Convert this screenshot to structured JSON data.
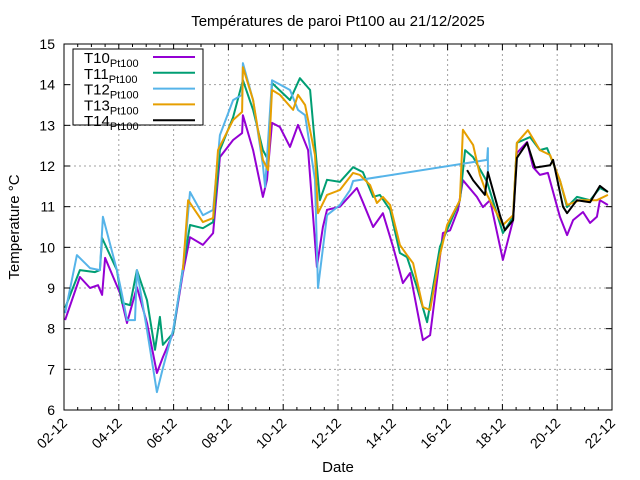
{
  "chart_data": {
    "type": "line",
    "title": "Températures de paroi Pt100 au 21/12/2025",
    "xlabel": "Date",
    "ylabel": "Temperature °C",
    "x_unit": "days since 02-12",
    "xlim": [
      0,
      20
    ],
    "ylim": [
      6,
      15
    ],
    "grid": true,
    "legend_position": "top-left",
    "xticks": [
      {
        "value": 0,
        "label": "02-12"
      },
      {
        "value": 2,
        "label": "04-12"
      },
      {
        "value": 4,
        "label": "06-12"
      },
      {
        "value": 6,
        "label": "08-12"
      },
      {
        "value": 8,
        "label": "10-12"
      },
      {
        "value": 10,
        "label": "12-12"
      },
      {
        "value": 12,
        "label": "14-12"
      },
      {
        "value": 14,
        "label": "16-12"
      },
      {
        "value": 16,
        "label": "18-12"
      },
      {
        "value": 18,
        "label": "20-12"
      },
      {
        "value": 20,
        "label": "22-12"
      }
    ],
    "yticks": [
      {
        "value": 6,
        "label": "6"
      },
      {
        "value": 7,
        "label": "7"
      },
      {
        "value": 8,
        "label": "8"
      },
      {
        "value": 9,
        "label": "9"
      },
      {
        "value": 10,
        "label": "10"
      },
      {
        "value": 11,
        "label": "11"
      },
      {
        "value": 12,
        "label": "12"
      },
      {
        "value": 13,
        "label": "13"
      },
      {
        "value": 14,
        "label": "14"
      },
      {
        "value": 15,
        "label": "15"
      }
    ],
    "series": [
      {
        "name": "T10",
        "sub": "Pt100",
        "color": "#9400d3",
        "points": [
          [
            0.04,
            8.21
          ],
          [
            0.58,
            9.27
          ],
          [
            0.95,
            9.0
          ],
          [
            1.24,
            9.07
          ],
          [
            1.39,
            8.83
          ],
          [
            1.5,
            9.74
          ],
          [
            2.04,
            8.88
          ],
          [
            2.3,
            8.14
          ],
          [
            2.66,
            9.02
          ],
          [
            3.03,
            8.14
          ],
          [
            3.39,
            6.91
          ],
          [
            3.61,
            7.3
          ],
          [
            3.98,
            7.89
          ],
          [
            4.34,
            9.37
          ],
          [
            4.6,
            10.25
          ],
          [
            5.07,
            10.06
          ],
          [
            5.44,
            10.35
          ],
          [
            5.69,
            12.22
          ],
          [
            6.17,
            12.64
          ],
          [
            6.5,
            12.81
          ],
          [
            6.53,
            13.25
          ],
          [
            6.9,
            12.39
          ],
          [
            7.26,
            11.24
          ],
          [
            7.41,
            11.66
          ],
          [
            7.59,
            13.06
          ],
          [
            7.88,
            12.96
          ],
          [
            8.25,
            12.47
          ],
          [
            8.54,
            13.01
          ],
          [
            8.91,
            12.39
          ],
          [
            9.23,
            9.52
          ],
          [
            9.45,
            10.5
          ],
          [
            9.6,
            10.92
          ],
          [
            10.07,
            11.0
          ],
          [
            10.69,
            11.46
          ],
          [
            10.91,
            11.11
          ],
          [
            11.28,
            10.5
          ],
          [
            11.64,
            10.84
          ],
          [
            12.01,
            10.01
          ],
          [
            12.37,
            9.12
          ],
          [
            12.63,
            9.37
          ],
          [
            13.1,
            7.72
          ],
          [
            13.36,
            7.84
          ],
          [
            13.83,
            10.35
          ],
          [
            14.09,
            10.42
          ],
          [
            14.38,
            10.92
          ],
          [
            14.56,
            11.65
          ],
          [
            15.07,
            11.24
          ],
          [
            15.29,
            10.99
          ],
          [
            15.55,
            11.16
          ],
          [
            16.02,
            9.69
          ],
          [
            16.39,
            10.67
          ],
          [
            16.53,
            12.32
          ],
          [
            16.9,
            12.59
          ],
          [
            17.12,
            11.97
          ],
          [
            17.37,
            11.78
          ],
          [
            17.66,
            11.83
          ],
          [
            18.1,
            10.75
          ],
          [
            18.36,
            10.3
          ],
          [
            18.58,
            10.67
          ],
          [
            18.94,
            10.87
          ],
          [
            19.2,
            10.6
          ],
          [
            19.45,
            10.75
          ],
          [
            19.56,
            11.16
          ],
          [
            19.85,
            11.04
          ]
        ]
      },
      {
        "name": "T11",
        "sub": "Pt100",
        "color": "#009e73",
        "points": [
          [
            0.04,
            8.51
          ],
          [
            0.58,
            9.44
          ],
          [
            1.13,
            9.39
          ],
          [
            1.31,
            9.44
          ],
          [
            1.39,
            10.23
          ],
          [
            1.93,
            9.44
          ],
          [
            2.12,
            8.63
          ],
          [
            2.41,
            8.58
          ],
          [
            2.66,
            9.44
          ],
          [
            3.03,
            8.7
          ],
          [
            3.32,
            7.48
          ],
          [
            3.5,
            8.29
          ],
          [
            3.61,
            7.6
          ],
          [
            3.98,
            7.89
          ],
          [
            4.34,
            9.49
          ],
          [
            4.6,
            10.55
          ],
          [
            5.07,
            10.47
          ],
          [
            5.44,
            10.62
          ],
          [
            5.69,
            12.39
          ],
          [
            6.17,
            13.2
          ],
          [
            6.53,
            14.11
          ],
          [
            6.9,
            13.38
          ],
          [
            7.26,
            12.39
          ],
          [
            7.45,
            12.15
          ],
          [
            7.59,
            14.04
          ],
          [
            8.25,
            13.62
          ],
          [
            8.61,
            14.16
          ],
          [
            8.98,
            13.87
          ],
          [
            9.34,
            11.16
          ],
          [
            9.6,
            11.66
          ],
          [
            10.07,
            11.61
          ],
          [
            10.55,
            11.97
          ],
          [
            10.91,
            11.85
          ],
          [
            11.28,
            11.24
          ],
          [
            11.53,
            11.29
          ],
          [
            11.9,
            10.92
          ],
          [
            12.26,
            9.86
          ],
          [
            12.52,
            9.76
          ],
          [
            12.88,
            9.02
          ],
          [
            13.25,
            8.16
          ],
          [
            13.72,
            10.01
          ],
          [
            14.09,
            10.6
          ],
          [
            14.45,
            11.16
          ],
          [
            14.64,
            12.39
          ],
          [
            14.93,
            12.22
          ],
          [
            15.44,
            11.61
          ],
          [
            16.02,
            10.35
          ],
          [
            16.39,
            10.75
          ],
          [
            16.53,
            12.57
          ],
          [
            17.01,
            12.71
          ],
          [
            17.37,
            12.39
          ],
          [
            17.63,
            12.44
          ],
          [
            18.1,
            11.65
          ],
          [
            18.36,
            10.99
          ],
          [
            18.72,
            11.24
          ],
          [
            19.2,
            11.16
          ],
          [
            19.56,
            11.46
          ],
          [
            19.85,
            11.36
          ]
        ]
      },
      {
        "name": "T12",
        "sub": "Pt100",
        "color": "#56b4e9",
        "points": [
          [
            0.04,
            8.38
          ],
          [
            0.47,
            9.81
          ],
          [
            0.95,
            9.49
          ],
          [
            1.31,
            9.44
          ],
          [
            1.42,
            10.75
          ],
          [
            1.93,
            9.44
          ],
          [
            2.12,
            8.83
          ],
          [
            2.3,
            8.21
          ],
          [
            2.59,
            8.21
          ],
          [
            2.66,
            9.44
          ],
          [
            3.03,
            7.97
          ],
          [
            3.39,
            6.44
          ],
          [
            3.61,
            7.03
          ],
          [
            3.98,
            7.97
          ],
          [
            4.34,
            9.44
          ],
          [
            4.6,
            11.36
          ],
          [
            5.07,
            10.79
          ],
          [
            5.44,
            10.92
          ],
          [
            5.69,
            12.76
          ],
          [
            6.17,
            13.62
          ],
          [
            6.5,
            13.75
          ],
          [
            6.53,
            14.53
          ],
          [
            6.9,
            13.62
          ],
          [
            7.26,
            12.02
          ],
          [
            7.34,
            11.48
          ],
          [
            7.59,
            14.11
          ],
          [
            8.25,
            13.87
          ],
          [
            8.54,
            13.38
          ],
          [
            8.8,
            13.25
          ],
          [
            9.16,
            11.66
          ],
          [
            9.27,
            9.0
          ],
          [
            9.6,
            10.79
          ],
          [
            10.07,
            11.04
          ],
          [
            10.44,
            11.41
          ],
          [
            10.55,
            11.63
          ],
          [
            15.44,
            12.15
          ],
          [
            15.47,
            12.44
          ],
          [
            15.47,
            11.78
          ]
        ]
      },
      {
        "name": "T13",
        "sub": "Pt100",
        "color": "#e69f00",
        "points": [
          [
            4.34,
            9.44
          ],
          [
            4.53,
            11.16
          ],
          [
            5.07,
            10.62
          ],
          [
            5.44,
            10.72
          ],
          [
            5.62,
            12.39
          ],
          [
            6.17,
            13.13
          ],
          [
            6.5,
            13.33
          ],
          [
            6.53,
            14.43
          ],
          [
            6.9,
            13.62
          ],
          [
            7.26,
            12.15
          ],
          [
            7.45,
            11.9
          ],
          [
            7.59,
            13.87
          ],
          [
            7.88,
            13.75
          ],
          [
            8.36,
            13.38
          ],
          [
            8.54,
            13.75
          ],
          [
            8.8,
            13.5
          ],
          [
            9.16,
            12.27
          ],
          [
            9.27,
            10.84
          ],
          [
            9.6,
            11.29
          ],
          [
            10.07,
            11.41
          ],
          [
            10.55,
            11.83
          ],
          [
            10.8,
            11.78
          ],
          [
            11.17,
            11.53
          ],
          [
            11.42,
            11.09
          ],
          [
            11.64,
            11.24
          ],
          [
            11.9,
            11.04
          ],
          [
            12.26,
            10.06
          ],
          [
            12.52,
            9.81
          ],
          [
            12.74,
            9.61
          ],
          [
            13.1,
            8.53
          ],
          [
            13.36,
            8.46
          ],
          [
            13.72,
            9.81
          ],
          [
            13.98,
            10.55
          ],
          [
            14.45,
            11.16
          ],
          [
            14.56,
            12.89
          ],
          [
            14.93,
            12.52
          ],
          [
            15.18,
            11.78
          ],
          [
            15.44,
            11.29
          ],
          [
            16.02,
            10.55
          ],
          [
            16.39,
            10.79
          ],
          [
            16.53,
            12.57
          ],
          [
            16.93,
            12.88
          ],
          [
            17.37,
            12.39
          ],
          [
            17.74,
            12.27
          ],
          [
            18.1,
            11.65
          ],
          [
            18.36,
            11.04
          ],
          [
            18.83,
            11.16
          ],
          [
            19.45,
            11.16
          ],
          [
            19.85,
            11.29
          ]
        ]
      },
      {
        "name": "T14",
        "sub": "Pt100",
        "color": "#000000",
        "points": [
          [
            14.71,
            11.9
          ],
          [
            14.93,
            11.65
          ],
          [
            15.36,
            11.29
          ],
          [
            15.47,
            11.85
          ],
          [
            15.91,
            10.79
          ],
          [
            16.09,
            10.42
          ],
          [
            16.39,
            10.67
          ],
          [
            16.53,
            12.2
          ],
          [
            16.9,
            12.57
          ],
          [
            17.19,
            11.96
          ],
          [
            17.74,
            12.02
          ],
          [
            17.85,
            12.15
          ],
          [
            18.21,
            11.0
          ],
          [
            18.36,
            10.84
          ],
          [
            18.72,
            11.16
          ],
          [
            19.2,
            11.11
          ],
          [
            19.56,
            11.51
          ],
          [
            19.85,
            11.36
          ]
        ]
      }
    ]
  }
}
